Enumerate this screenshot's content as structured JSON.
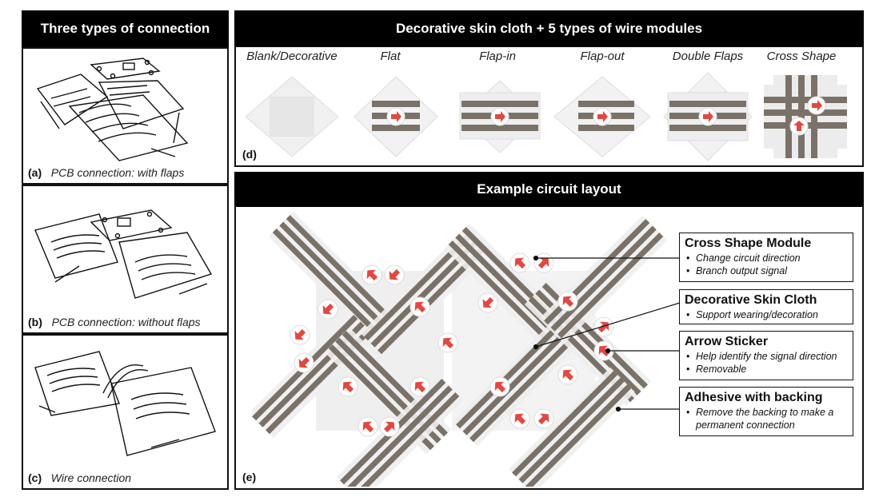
{
  "left": {
    "header": "Three types of connection",
    "panels": [
      {
        "letter": "(a)",
        "caption": "PCB connection: with flaps"
      },
      {
        "letter": "(b)",
        "caption": "PCB connection: without flaps"
      },
      {
        "letter": "(c)",
        "caption": "Wire connection"
      }
    ]
  },
  "top": {
    "header": "Decorative skin cloth + 5 types of wire modules",
    "modules": [
      "Blank/Decorative",
      "Flat",
      "Flap-in",
      "Flap-out",
      "Double Flaps",
      "Cross Shape"
    ],
    "panel_label": "(d)"
  },
  "bottom": {
    "header": "Example circuit layout",
    "panel_label": "(e)",
    "callouts": [
      {
        "title": "Cross Shape Module",
        "bullets": [
          "Change circuit direction",
          "Branch output signal"
        ]
      },
      {
        "title": "Decorative Skin Cloth",
        "bullets": [
          "Support wearing/decoration"
        ]
      },
      {
        "title": "Arrow Sticker",
        "bullets": [
          "Help identify the signal direction",
          "Removable"
        ]
      },
      {
        "title": "Adhesive with backing",
        "bullets": [
          "Remove the backing to make a permanent connection"
        ]
      }
    ]
  },
  "colors": {
    "arrow": "#e8453c",
    "wire": "#7a7268",
    "cloth": "#ececec",
    "header_bg": "#000000"
  }
}
